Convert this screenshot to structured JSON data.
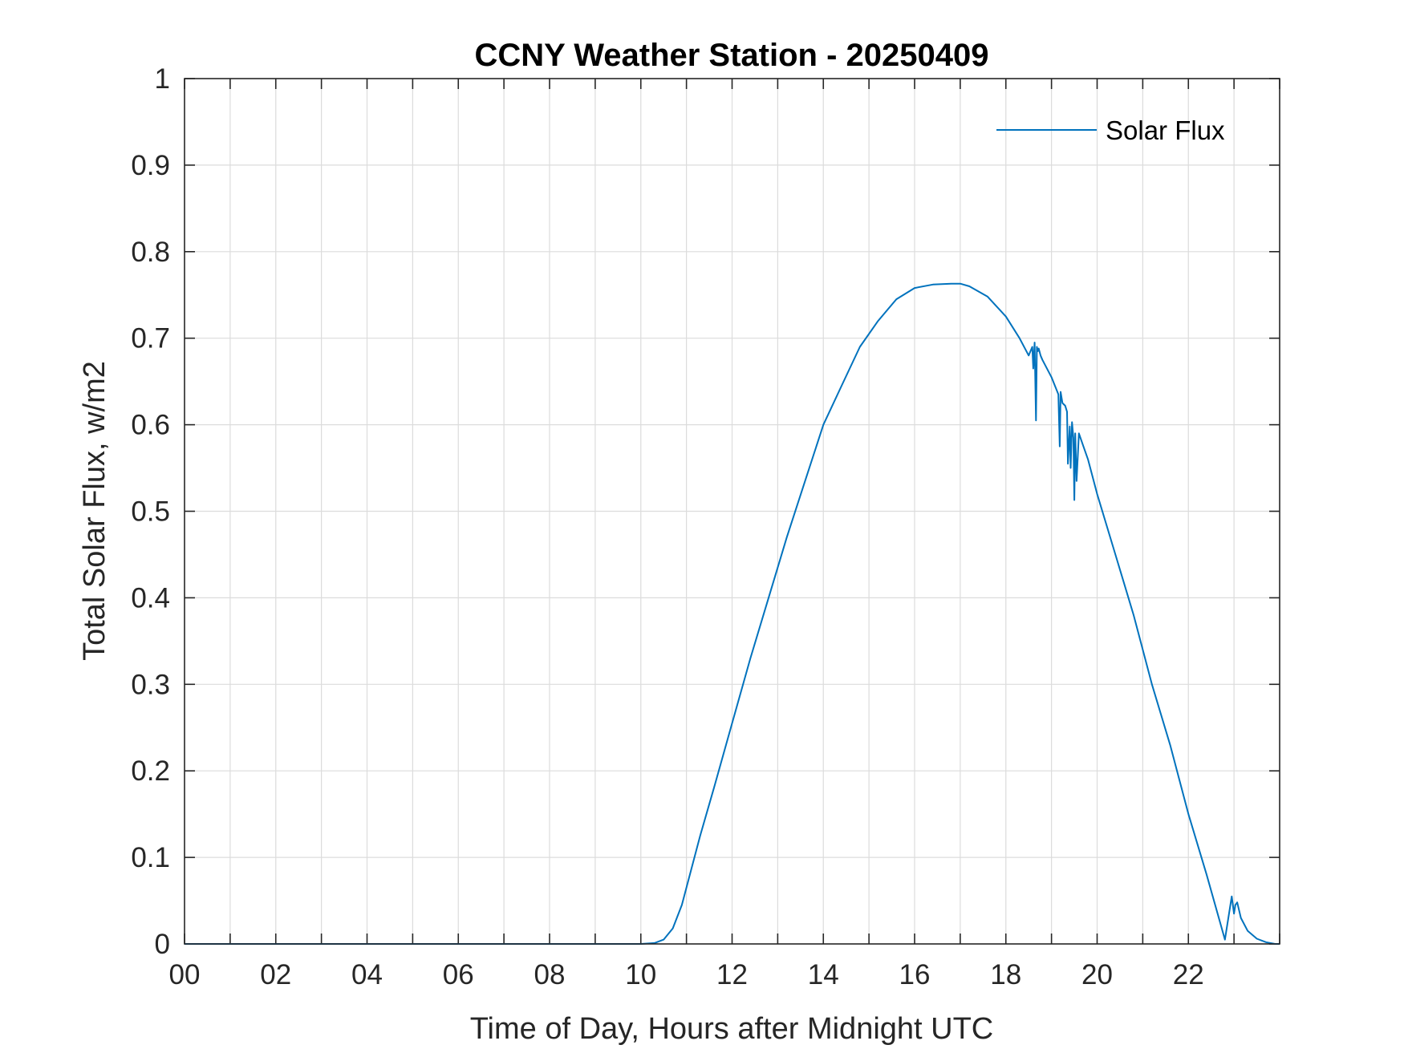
{
  "chart_data": {
    "type": "line",
    "title": "CCNY Weather Station - 20250409",
    "xlabel": "Time of Day, Hours after Midnight UTC",
    "ylabel": "Total Solar Flux, w/m2",
    "xlim": [
      0,
      24
    ],
    "ylim": [
      0,
      1
    ],
    "xticks": [
      0,
      2,
      4,
      6,
      8,
      10,
      12,
      14,
      16,
      18,
      20,
      22
    ],
    "xtick_labels": [
      "00",
      "02",
      "04",
      "06",
      "08",
      "10",
      "12",
      "14",
      "16",
      "18",
      "20",
      "22"
    ],
    "yticks": [
      0,
      0.1,
      0.2,
      0.3,
      0.4,
      0.5,
      0.6,
      0.7,
      0.8,
      0.9,
      1
    ],
    "ytick_labels": [
      "0",
      "0.1",
      "0.2",
      "0.3",
      "0.4",
      "0.5",
      "0.6",
      "0.7",
      "0.8",
      "0.9",
      "1"
    ],
    "grid": true,
    "legend": {
      "placement": "top-right",
      "entries": [
        "Solar Flux"
      ]
    },
    "colors": {
      "series": "#0072BD",
      "axes": "#262626",
      "grid": "#dcdcdc"
    },
    "series": [
      {
        "name": "Solar Flux",
        "x": [
          0,
          10.0,
          10.3,
          10.5,
          10.7,
          10.9,
          11.1,
          11.3,
          11.6,
          12.0,
          12.4,
          12.8,
          13.2,
          13.6,
          14.0,
          14.4,
          14.8,
          15.2,
          15.6,
          16.0,
          16.4,
          16.8,
          17.0,
          17.2,
          17.6,
          18.0,
          18.3,
          18.5,
          18.58,
          18.6,
          18.63,
          18.66,
          18.68,
          18.7,
          18.72,
          18.76,
          18.8,
          19.0,
          19.15,
          19.18,
          19.2,
          19.24,
          19.3,
          19.34,
          19.36,
          19.4,
          19.42,
          19.45,
          19.48,
          19.5,
          19.52,
          19.55,
          19.6,
          19.7,
          19.8,
          20.0,
          20.4,
          20.8,
          21.2,
          21.6,
          22.0,
          22.4,
          22.8,
          22.95,
          23.0,
          23.03,
          23.07,
          23.15,
          23.3,
          23.5,
          23.7,
          23.9,
          24.0
        ],
        "y": [
          0,
          0,
          0.001,
          0.005,
          0.018,
          0.045,
          0.085,
          0.125,
          0.18,
          0.255,
          0.33,
          0.4,
          0.47,
          0.535,
          0.6,
          0.645,
          0.69,
          0.72,
          0.745,
          0.758,
          0.762,
          0.763,
          0.763,
          0.76,
          0.748,
          0.725,
          0.7,
          0.68,
          0.69,
          0.665,
          0.695,
          0.605,
          0.69,
          0.685,
          0.688,
          0.68,
          0.675,
          0.655,
          0.635,
          0.575,
          0.638,
          0.625,
          0.622,
          0.615,
          0.555,
          0.598,
          0.55,
          0.603,
          0.585,
          0.513,
          0.59,
          0.535,
          0.59,
          0.575,
          0.56,
          0.52,
          0.45,
          0.38,
          0.3,
          0.23,
          0.15,
          0.08,
          0.005,
          0.055,
          0.035,
          0.045,
          0.048,
          0.03,
          0.015,
          0.006,
          0.002,
          0.0,
          0.0
        ]
      }
    ]
  }
}
